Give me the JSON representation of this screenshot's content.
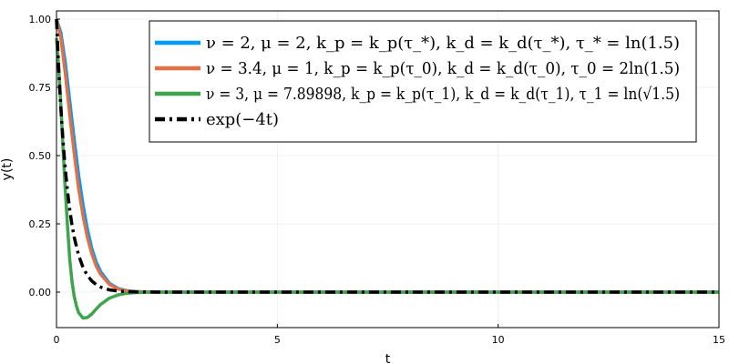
{
  "chart_data": {
    "type": "line",
    "title": "",
    "xlabel": "t",
    "ylabel": "y(t)",
    "xlim": [
      0,
      15
    ],
    "ylim": [
      -0.13,
      1.03
    ],
    "x_ticks": [
      0,
      5,
      10,
      15
    ],
    "x_tick_labels": [
      "0",
      "5",
      "10",
      "15"
    ],
    "y_ticks": [
      0,
      0.25,
      0.5,
      0.75,
      1.0
    ],
    "y_tick_labels": [
      "0.00",
      "0.25",
      "0.50",
      "0.75",
      "1.00"
    ],
    "grid": true,
    "legend_position": "top-right",
    "series": [
      {
        "name": "ν = 2, μ = 2, k_p = k_p(τ_*), k_d = k_d(τ_*), τ_* = ln(1.5)",
        "color": "#009AFA",
        "dash": "solid",
        "x": [
          0,
          0.1,
          0.2,
          0.3,
          0.4,
          0.5,
          0.6,
          0.7,
          0.8,
          0.9,
          1.0,
          1.2,
          1.4,
          1.6,
          1.8,
          2.0,
          2.5,
          3.0,
          4.0,
          6.0,
          10.0,
          15.0
        ],
        "y": [
          1.0,
          0.95,
          0.84,
          0.7,
          0.56,
          0.43,
          0.32,
          0.23,
          0.16,
          0.11,
          0.075,
          0.032,
          0.013,
          0.005,
          0.002,
          0.0008,
          0.0001,
          0.0,
          0.0,
          0.0,
          0.0,
          0.0
        ]
      },
      {
        "name": "ν = 3.4, μ = 1, k_p = k_p(τ_0), k_d = k_d(τ_0), τ_0 = 2ln(1.5)",
        "color": "#E26F46",
        "dash": "solid",
        "x": [
          0,
          0.1,
          0.2,
          0.3,
          0.4,
          0.5,
          0.6,
          0.7,
          0.8,
          0.9,
          1.0,
          1.2,
          1.4,
          1.6,
          1.8,
          2.0,
          2.5,
          3.0,
          4.0,
          6.0,
          10.0,
          15.0
        ],
        "y": [
          1.0,
          0.93,
          0.8,
          0.65,
          0.51,
          0.38,
          0.28,
          0.2,
          0.14,
          0.095,
          0.065,
          0.028,
          0.011,
          0.004,
          0.0015,
          0.0005,
          0.0,
          0.0,
          0.0,
          0.0,
          0.0,
          0.0
        ]
      },
      {
        "name": "ν = 3, μ = 7.89898, k_p = k_p(τ_1), k_d = k_d(τ_1), τ_1 = ln(√1.5)",
        "color": "#3EA44E",
        "dash": "solid",
        "x": [
          0,
          0.05,
          0.1,
          0.15,
          0.2,
          0.25,
          0.3,
          0.35,
          0.4,
          0.45,
          0.5,
          0.6,
          0.7,
          0.8,
          0.9,
          1.0,
          1.2,
          1.4,
          1.6,
          1.8,
          2.0,
          2.5,
          3.0,
          4.0,
          6.0,
          10.0,
          15.0
        ],
        "y": [
          0.93,
          0.82,
          0.68,
          0.52,
          0.37,
          0.24,
          0.12,
          0.04,
          -0.015,
          -0.05,
          -0.075,
          -0.095,
          -0.093,
          -0.08,
          -0.062,
          -0.045,
          -0.022,
          -0.01,
          -0.004,
          -0.0015,
          -0.0005,
          0.0,
          0.0,
          0.0,
          0.0,
          0.0,
          0.0
        ]
      },
      {
        "name": "exp(−4t)",
        "color": "#000000",
        "dash": "dashdot",
        "x": [
          0,
          0.05,
          0.1,
          0.15,
          0.2,
          0.25,
          0.3,
          0.35,
          0.4,
          0.5,
          0.6,
          0.7,
          0.8,
          0.9,
          1.0,
          1.2,
          1.4,
          1.6,
          1.8,
          2.0,
          2.5,
          3.0,
          4.0,
          6.0,
          10.0,
          15.0
        ],
        "y": [
          1.0,
          0.8187,
          0.6703,
          0.5488,
          0.4493,
          0.3679,
          0.3012,
          0.2466,
          0.2019,
          0.1353,
          0.0907,
          0.0608,
          0.0408,
          0.0273,
          0.0183,
          0.0082,
          0.0037,
          0.0017,
          0.0007,
          0.0003,
          0.0,
          0.0,
          0.0,
          0.0,
          0.0,
          0.0
        ]
      }
    ]
  }
}
